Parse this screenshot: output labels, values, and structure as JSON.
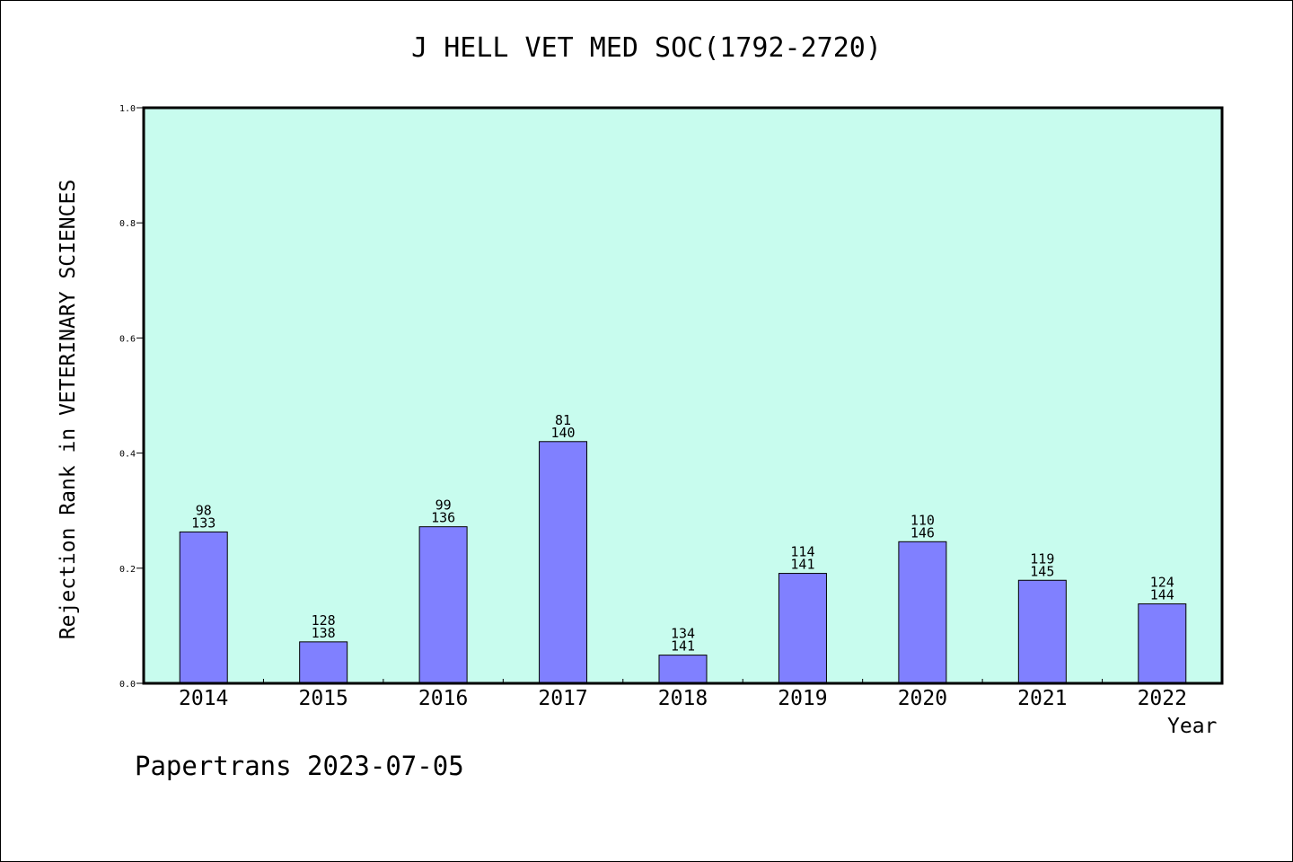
{
  "chart_data": {
    "type": "bar",
    "title": "J HELL VET MED SOC(1792-2720)",
    "xlabel": "Year",
    "ylabel": "Rejection Rank in VETERINARY SCIENCES",
    "ylim": [
      0,
      1.0
    ],
    "yticks": [
      "0.0",
      "0.2",
      "0.4",
      "0.6",
      "0.8",
      "1.0"
    ],
    "categories": [
      "2014",
      "2015",
      "2016",
      "2017",
      "2018",
      "2019",
      "2020",
      "2021",
      "2022"
    ],
    "values": [
      0.263,
      0.072,
      0.272,
      0.42,
      0.049,
      0.191,
      0.246,
      0.179,
      0.138
    ],
    "rank": [
      "98",
      "128",
      "99",
      "81",
      "134",
      "114",
      "110",
      "119",
      "124"
    ],
    "total": [
      "133",
      "138",
      "136",
      "140",
      "141",
      "141",
      "146",
      "145",
      "144"
    ],
    "grid": false,
    "legend": "none",
    "colors": {
      "plot_background": "#c8fcee",
      "bar_fill": "#8080ff",
      "bar_stroke": "#000000"
    }
  },
  "footer": {
    "credit": "Papertrans 2023-07-05"
  }
}
